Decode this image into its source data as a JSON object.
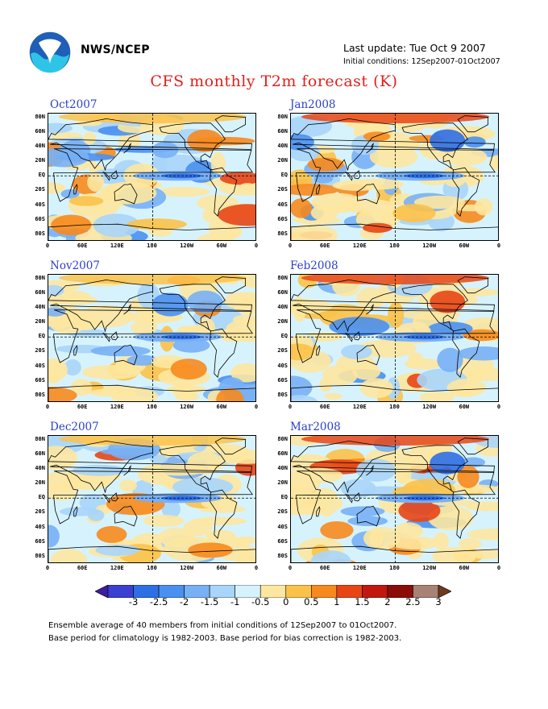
{
  "header": {
    "org": "NWS/NCEP",
    "last_update": "Last update: Tue Oct 9 2007",
    "initial_conditions": "Initial conditions: 12Sep2007-01Oct2007"
  },
  "title": "CFS monthly T2m forecast (K)",
  "axes": {
    "lat_labels": [
      "80N",
      "60N",
      "40N",
      "20N",
      "EQ",
      "20S",
      "40S",
      "60S",
      "80S"
    ],
    "lon_labels": [
      "0",
      "60E",
      "120E",
      "180",
      "120W",
      "60W",
      "0"
    ]
  },
  "panels": [
    {
      "label": "Oct2007"
    },
    {
      "label": "Jan2008"
    },
    {
      "label": "Nov2007"
    },
    {
      "label": "Feb2008"
    },
    {
      "label": "Dec2007"
    },
    {
      "label": "Mar2008"
    }
  ],
  "colorbar": {
    "tick_labels": [
      "-3",
      "-2.5",
      "-2",
      "-1.5",
      "-1",
      "-0.5",
      "0",
      "0.5",
      "1",
      "1.5",
      "2",
      "2.5",
      "3"
    ],
    "colors": [
      "#3a1fa0",
      "#3b3fd2",
      "#2f6fe6",
      "#4a90f0",
      "#78b0f5",
      "#a8d5fa",
      "#d6f3fd",
      "#fde7a0",
      "#fbc24a",
      "#f7891d",
      "#e84515",
      "#c2170e",
      "#8c0c08",
      "#a88275",
      "#6e3a1e"
    ]
  },
  "footer": {
    "line1": "Ensemble average of 40 members from initial conditions of 12Sep2007 to 01Oct2007.",
    "line2": "Base period for climatology is 1982-2003. Base period for bias correction is 1982-2003."
  }
}
